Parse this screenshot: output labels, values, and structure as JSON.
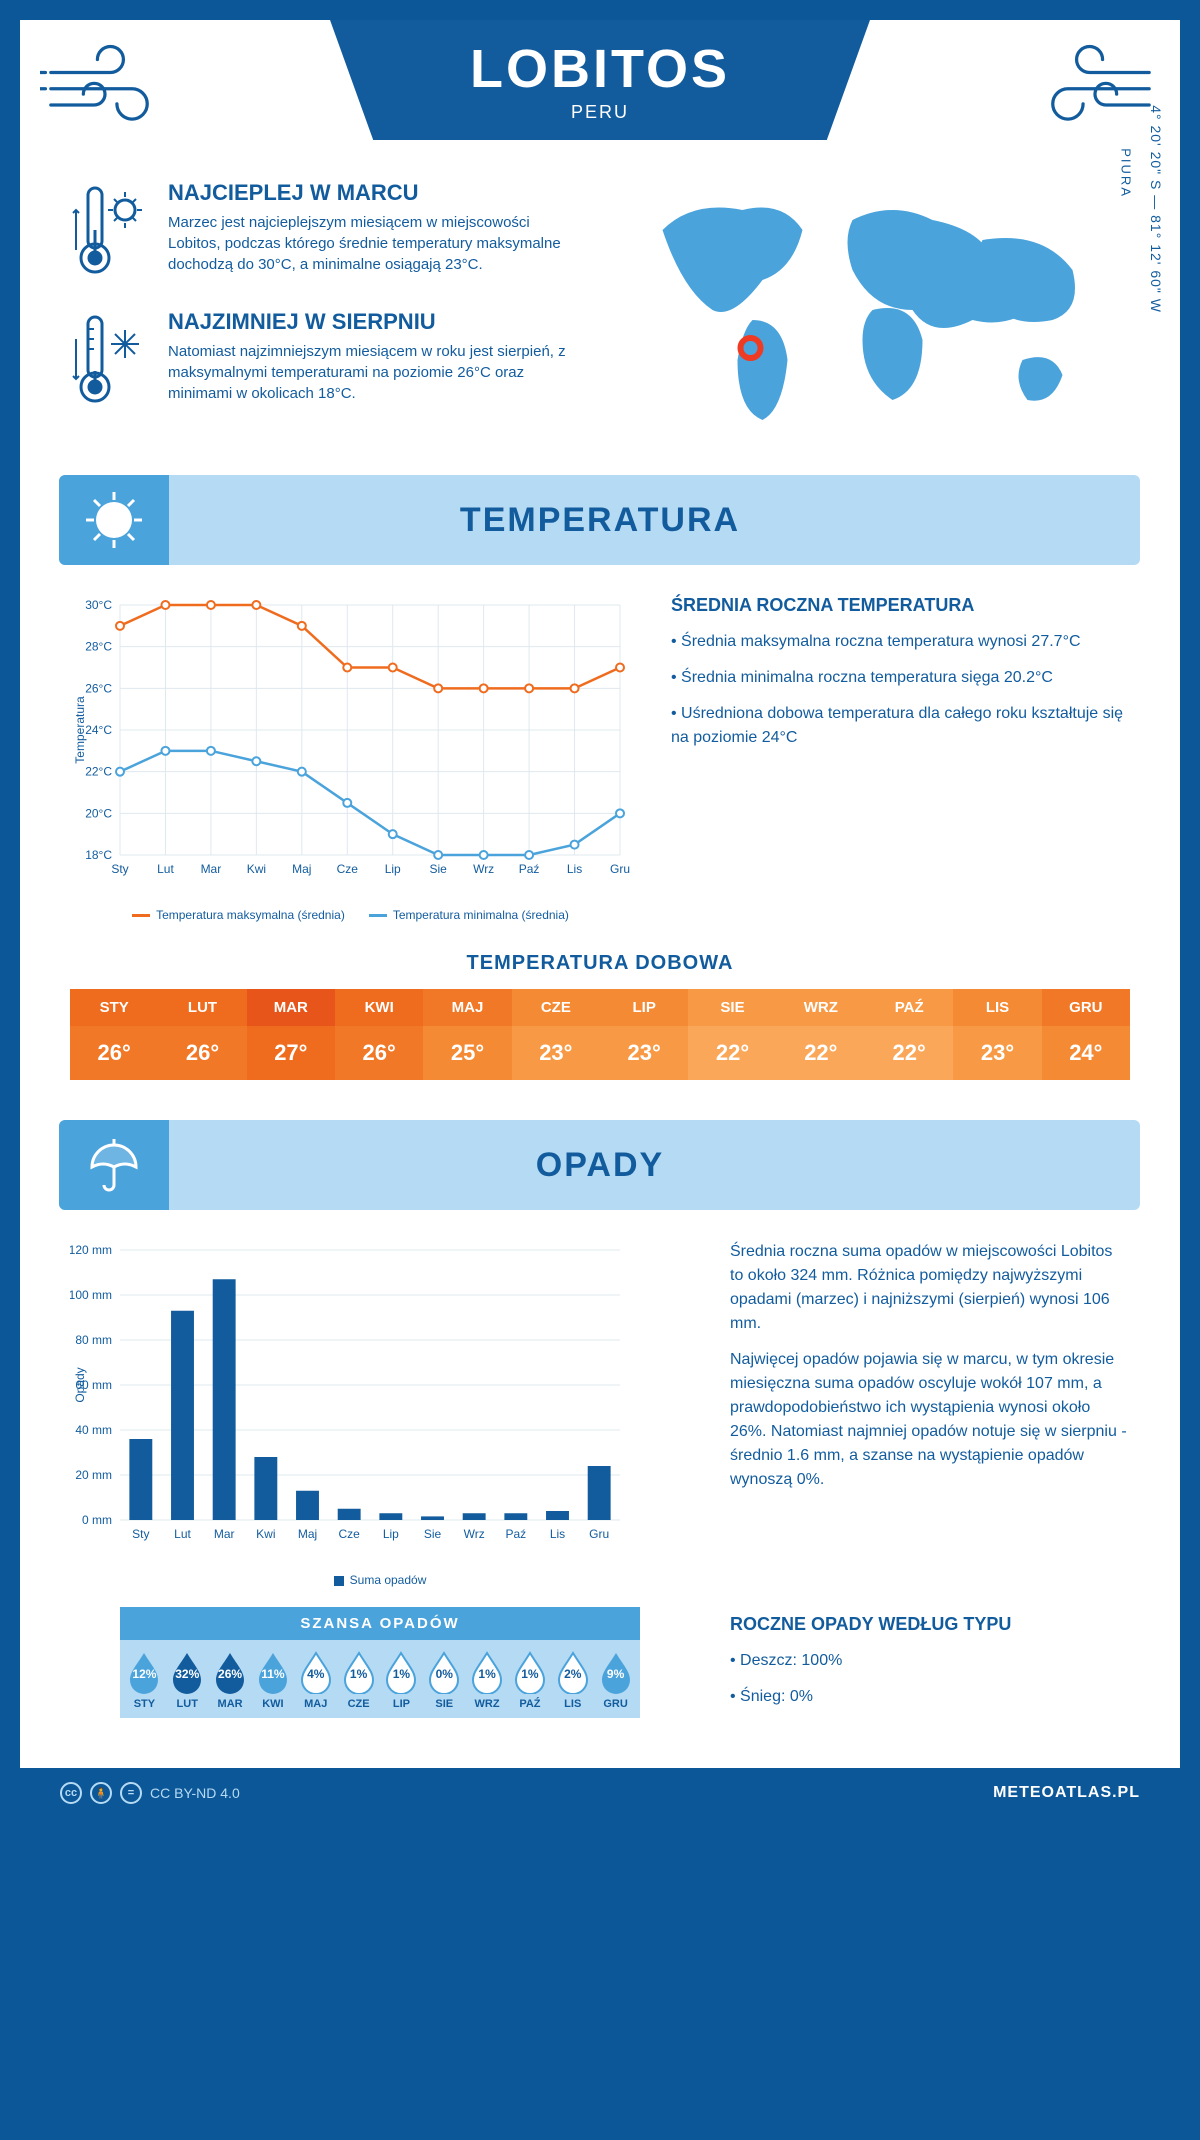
{
  "header": {
    "title": "LOBITOS",
    "subtitle": "PERU",
    "region": "PIURA",
    "coords": "4° 20' 20\" S — 81° 12' 60\" W"
  },
  "facts": {
    "hot": {
      "title": "NAJCIEPLEJ W MARCU",
      "text": "Marzec jest najcieplejszym miesiącem w miejscowości Lobitos, podczas którego średnie temperatury maksymalne dochodzą do 30°C, a minimalne osiągają 23°C."
    },
    "cold": {
      "title": "NAJZIMNIEJ W SIERPNIU",
      "text": "Natomiast najzimniejszym miesiącem w roku jest sierpień, z maksymalnymi temperaturami na poziomie 26°C oraz minimami w okolicach 18°C."
    }
  },
  "colors": {
    "primary": "#125c9e",
    "light": "#b5daf3",
    "mid": "#4ba3dc",
    "orange_series": "#ef6c1f",
    "blue_series": "#4ba3dc",
    "bar": "#125c9e",
    "grid": "#dfe8ef"
  },
  "months": [
    "Sty",
    "Lut",
    "Mar",
    "Kwi",
    "Maj",
    "Cze",
    "Lip",
    "Sie",
    "Wrz",
    "Paź",
    "Lis",
    "Gru"
  ],
  "months_upper": [
    "STY",
    "LUT",
    "MAR",
    "KWI",
    "MAJ",
    "CZE",
    "LIP",
    "SIE",
    "WRZ",
    "PAŹ",
    "LIS",
    "GRU"
  ],
  "temperature": {
    "section_title": "TEMPERATURA",
    "chart": {
      "type": "line",
      "ylabel": "Temperatura",
      "ylim": [
        18,
        30
      ],
      "ytick_step": 2,
      "series": [
        {
          "name": "Temperatura maksymalna (średnia)",
          "color": "#ef6c1f",
          "values": [
            29,
            30,
            30,
            30,
            29,
            27,
            27,
            26,
            26,
            26,
            26,
            27
          ]
        },
        {
          "name": "Temperatura minimalna (średnia)",
          "color": "#4ba3dc",
          "values": [
            22,
            23,
            23,
            22.5,
            22,
            20.5,
            19,
            18,
            18,
            18,
            18.5,
            20
          ]
        }
      ]
    },
    "summary": {
      "title": "ŚREDNIA ROCZNA TEMPERATURA",
      "bullets": [
        "Średnia maksymalna roczna temperatura wynosi 27.7°C",
        "Średnia minimalna roczna temperatura sięga 20.2°C",
        "Uśredniona dobowa temperatura dla całego roku kształtuje się na poziomie 24°C"
      ]
    },
    "daily_table": {
      "title": "TEMPERATURA DOBOWA",
      "values": [
        "26°",
        "26°",
        "27°",
        "26°",
        "25°",
        "23°",
        "23°",
        "22°",
        "22°",
        "22°",
        "23°",
        "24°"
      ],
      "header_colors": [
        "#ef6c1f",
        "#ef6c1f",
        "#e8551a",
        "#ef6c1f",
        "#f17826",
        "#f58a35",
        "#f58a35",
        "#f89a45",
        "#f89a45",
        "#f89a45",
        "#f58a35",
        "#f17826"
      ],
      "value_colors": [
        "#f17826",
        "#f17826",
        "#ef6c1f",
        "#f17826",
        "#f58a35",
        "#f89a45",
        "#f89a45",
        "#fba759",
        "#fba759",
        "#fba759",
        "#f89a45",
        "#f58a35"
      ]
    }
  },
  "precip": {
    "section_title": "OPADY",
    "chart": {
      "type": "bar",
      "ylabel": "Opady",
      "ylim": [
        0,
        120
      ],
      "ytick_step": 20,
      "series_name": "Suma opadów",
      "color": "#125c9e",
      "values": [
        36,
        93,
        107,
        28,
        13,
        5,
        3,
        1.6,
        3,
        3,
        4,
        24
      ]
    },
    "summary_paragraphs": [
      "Średnia roczna suma opadów w miejscowości Lobitos to około 324 mm. Różnica pomiędzy najwyższymi opadami (marzec) i najniższymi (sierpień) wynosi 106 mm.",
      "Najwięcej opadów pojawia się w marcu, w tym okresie miesięczna suma opadów oscyluje wokół 107 mm, a prawdopodobieństwo ich wystąpienia wynosi około 26%. Natomiast najmniej opadów notuje się w sierpniu - średnio 1.6 mm, a szanse na wystąpienie opadów wynoszą 0%."
    ],
    "chance": {
      "title": "SZANSA OPADÓW",
      "values": [
        "12%",
        "32%",
        "26%",
        "11%",
        "4%",
        "1%",
        "1%",
        "0%",
        "1%",
        "1%",
        "2%",
        "9%"
      ],
      "filled": [
        true,
        true,
        true,
        true,
        false,
        false,
        false,
        false,
        false,
        false,
        false,
        true
      ],
      "dark": [
        false,
        true,
        true,
        false,
        false,
        false,
        false,
        false,
        false,
        false,
        false,
        false
      ]
    },
    "by_type": {
      "title": "ROCZNE OPADY WEDŁUG TYPU",
      "bullets": [
        "Deszcz: 100%",
        "Śnieg: 0%"
      ]
    }
  },
  "footer": {
    "license": "CC BY-ND 4.0",
    "brand": "METEOATLAS.PL"
  }
}
